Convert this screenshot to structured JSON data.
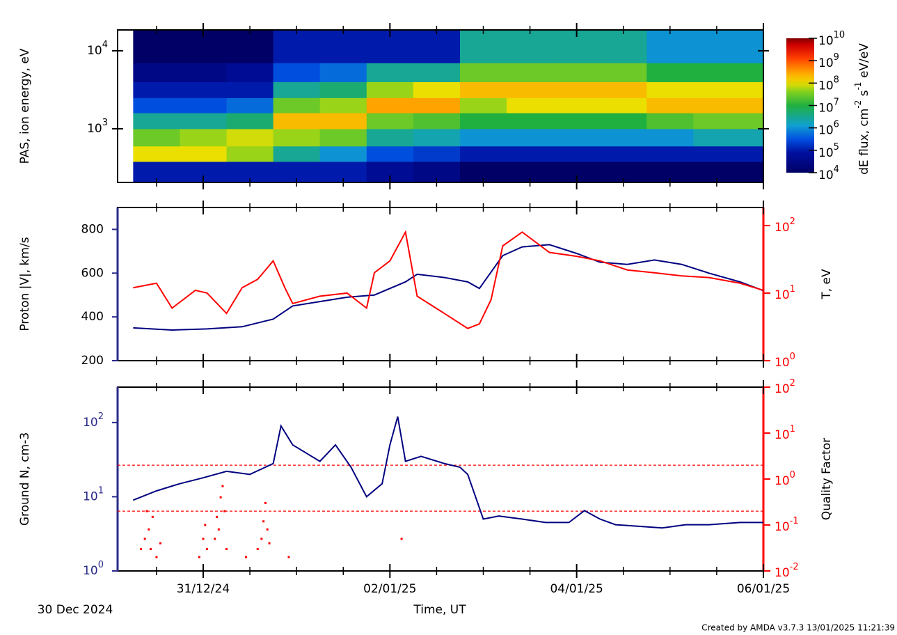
{
  "time_axis": {
    "label": "Time, UT",
    "start_label": "30 Dec 2024",
    "xlim": [
      2,
      168
    ],
    "xticks": [
      {
        "value": 24,
        "label": "31/12/24"
      },
      {
        "value": 72,
        "label": "02/01/25"
      },
      {
        "value": 120,
        "label": "04/01/25"
      },
      {
        "value": 168,
        "label": "06/01/25"
      }
    ],
    "xminor": [
      12,
      36,
      48,
      60,
      84,
      96,
      108,
      132,
      144,
      156
    ]
  },
  "credit": "Created by AMDA v3.7.3 13/01/2025 11:21:39",
  "chart_data": [
    {
      "type": "heatmap",
      "ylabel": "PAS, ion energy, eV",
      "ylog": true,
      "ylim": [
        205,
        18500
      ],
      "yticks": [
        {
          "value": 1000,
          "label": "10",
          "exponent": "3"
        },
        {
          "value": 10000,
          "label": "10",
          "exponent": "4"
        }
      ],
      "time_edges": [
        6,
        18,
        30,
        42,
        54,
        66,
        78,
        90,
        102,
        114,
        126,
        138,
        150,
        168
      ],
      "energy_edges": [
        205,
        380,
        600,
        1000,
        1600,
        2500,
        4000,
        7000,
        18500
      ],
      "flux": [
        [
          100000.0,
          100000000.0,
          30000000.0,
          3000000.0,
          300000.0,
          100000.0,
          30000.0,
          10000.0
        ],
        [
          100000.0,
          100000000.0,
          50000000.0,
          3000000.0,
          300000.0,
          100000.0,
          30000.0,
          10000.0
        ],
        [
          100000.0,
          50000000.0,
          80000000.0,
          5000000.0,
          500000.0,
          100000.0,
          50000.0,
          10000.0
        ],
        [
          100000.0,
          3000000.0,
          50000000.0,
          200000000.0,
          30000000.0,
          3000000.0,
          300000.0,
          100000.0
        ],
        [
          100000.0,
          1000000.0,
          30000000.0,
          200000000.0,
          50000000.0,
          5000000.0,
          500000.0,
          100000.0
        ],
        [
          50000.0,
          300000.0,
          3000000.0,
          30000000.0,
          300000000.0,
          50000000.0,
          3000000.0,
          100000.0
        ],
        [
          30000.0,
          200000.0,
          2000000.0,
          20000000.0,
          300000000.0,
          100000000.0,
          3000000.0,
          100000.0
        ],
        [
          10000.0,
          100000.0,
          1000000.0,
          10000000.0,
          50000000.0,
          200000000.0,
          30000000.0,
          3000000.0
        ],
        [
          10000.0,
          100000.0,
          1000000.0,
          10000000.0,
          100000000.0,
          200000000.0,
          30000000.0,
          3000000.0
        ],
        [
          10000.0,
          100000.0,
          1000000.0,
          10000000.0,
          100000000.0,
          200000000.0,
          30000000.0,
          3000000.0
        ],
        [
          10000.0,
          100000.0,
          1000000.0,
          10000000.0,
          100000000.0,
          200000000.0,
          30000000.0,
          3000000.0
        ],
        [
          10000.0,
          100000.0,
          1000000.0,
          20000000.0,
          200000000.0,
          100000000.0,
          10000000.0,
          1000000.0
        ],
        [
          10000.0,
          100000.0,
          2000000.0,
          30000000.0,
          200000000.0,
          100000000.0,
          10000000.0,
          1000000.0
        ]
      ],
      "colorbar": {
        "label_parts": [
          "dE flux, cm",
          "-2",
          " s",
          "-1",
          " eV/eV"
        ],
        "clim": [
          10000.0,
          10000000000.0
        ],
        "ticks": [
          {
            "value": 10000.0,
            "label": "10",
            "exponent": "4"
          },
          {
            "value": 100000.0,
            "label": "10",
            "exponent": "5"
          },
          {
            "value": 1000000.0,
            "label": "10",
            "exponent": "6"
          },
          {
            "value": 10000000.0,
            "label": "10",
            "exponent": "7"
          },
          {
            "value": 100000000.0,
            "label": "10",
            "exponent": "8"
          },
          {
            "value": 1000000000.0,
            "label": "10",
            "exponent": "9"
          },
          {
            "value": 10000000000.0,
            "label": "10",
            "exponent": "10"
          }
        ]
      }
    },
    {
      "type": "line",
      "ylabel": "Proton |V|, km/s",
      "ylim": [
        200,
        900
      ],
      "yticks": [
        200,
        400,
        600,
        800
      ],
      "ycolor": "#2a2a8a",
      "y2label": "T, eV",
      "y2log": true,
      "y2lim": [
        1,
        185
      ],
      "y2color": "#ff0000",
      "y2ticks": [
        {
          "value": 1,
          "label": "10",
          "exponent": "0"
        },
        {
          "value": 10,
          "label": "10",
          "exponent": "1"
        },
        {
          "value": 100,
          "label": "10",
          "exponent": "2"
        }
      ],
      "series": [
        {
          "color": "#000080",
          "style": "line",
          "x": [
            6,
            16,
            25,
            34,
            42,
            47,
            54,
            61,
            68,
            76,
            79,
            86,
            92,
            95,
            101,
            106,
            113,
            120,
            126,
            133,
            140,
            147,
            154,
            162,
            168
          ],
          "values": [
            350,
            340,
            345,
            355,
            390,
            450,
            470,
            490,
            500,
            560,
            595,
            580,
            560,
            530,
            680,
            720,
            730,
            690,
            650,
            640,
            660,
            640,
            600,
            560,
            520
          ]
        },
        {
          "color": "#ff0000",
          "style": "line",
          "axis": "y2",
          "x": [
            6,
            12,
            16,
            22,
            25,
            30,
            34,
            38,
            42,
            45,
            47,
            54,
            61,
            66,
            68,
            72,
            76,
            79,
            86,
            92,
            95,
            98,
            101,
            106,
            113,
            120,
            126,
            133,
            140,
            147,
            154,
            162,
            168
          ],
          "values": [
            12,
            14,
            6,
            11,
            10,
            5,
            12,
            16,
            30,
            12,
            7,
            9,
            10,
            6,
            20,
            30,
            80,
            9,
            5,
            3,
            3.5,
            8,
            50,
            80,
            40,
            35,
            30,
            22,
            20,
            18,
            17,
            14,
            11
          ]
        }
      ]
    },
    {
      "type": "line",
      "ylabel": "Ground N, cm-3",
      "ylog": true,
      "ylim": [
        1,
        300
      ],
      "ycolor": "#2a2a8a",
      "yticks": [
        {
          "value": 1,
          "label": "10",
          "exponent": "0"
        },
        {
          "value": 10,
          "label": "10",
          "exponent": "1"
        },
        {
          "value": 100,
          "label": "10",
          "exponent": "2"
        }
      ],
      "y2label": "Quality Factor",
      "y2log": true,
      "y2lim": [
        0.01,
        100
      ],
      "y2color": "#ff0000",
      "y2ticks": [
        {
          "value": 0.01,
          "label": "10",
          "exponent": "-2"
        },
        {
          "value": 0.1,
          "label": "10",
          "exponent": "-1"
        },
        {
          "value": 1,
          "label": "10",
          "exponent": "0"
        },
        {
          "value": 10,
          "label": "10",
          "exponent": "1"
        },
        {
          "value": 100,
          "label": "10",
          "exponent": "2"
        }
      ],
      "thresholds": [
        2,
        0.2
      ],
      "threshold_color": "#ff0000",
      "series": [
        {
          "color": "#000080",
          "style": "line",
          "x": [
            6,
            12,
            18,
            24,
            30,
            36,
            42,
            44,
            47,
            54,
            58,
            62,
            66,
            70,
            72,
            74,
            76,
            80,
            86,
            90,
            92,
            94,
            96,
            100,
            106,
            112,
            118,
            122,
            126,
            130,
            136,
            142,
            148,
            154,
            162,
            168
          ],
          "values": [
            9,
            12,
            15,
            18,
            22,
            20,
            28,
            90,
            50,
            30,
            50,
            25,
            10,
            15,
            50,
            120,
            30,
            35,
            28,
            25,
            20,
            10,
            5,
            5.5,
            5,
            4.5,
            4.5,
            6.5,
            5,
            4.2,
            4,
            3.8,
            4.2,
            4.2,
            4.5,
            4.5
          ]
        },
        {
          "color": "#ff0000",
          "style": "dots",
          "axis": "y2",
          "x": [
            8,
            9,
            9.5,
            10,
            10.5,
            11,
            12,
            13,
            23,
            24,
            24.5,
            25,
            27,
            27.5,
            28,
            28.5,
            29,
            29.5,
            30,
            35,
            38,
            39,
            39.5,
            40,
            40.5,
            41,
            46,
            75
          ],
          "values": [
            0.03,
            0.05,
            0.2,
            0.08,
            0.03,
            0.15,
            0.02,
            0.04,
            0.02,
            0.05,
            0.1,
            0.03,
            0.05,
            0.15,
            0.08,
            0.4,
            0.7,
            0.2,
            0.03,
            0.02,
            0.03,
            0.05,
            0.12,
            0.3,
            0.08,
            0.04,
            0.02,
            0.05
          ]
        }
      ]
    }
  ]
}
